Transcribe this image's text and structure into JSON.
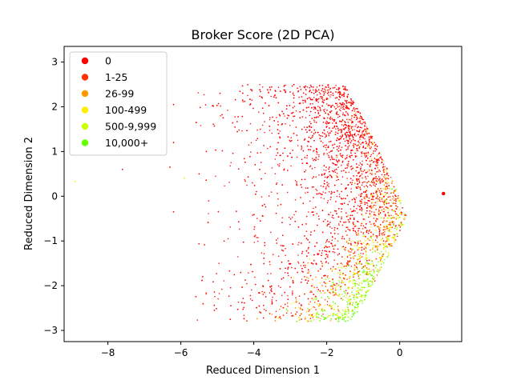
{
  "chart_data": {
    "type": "scatter",
    "title": "Broker Score (2D PCA)",
    "xlabel": "Reduced Dimension 1",
    "ylabel": "Reduced Dimension 2",
    "xlim": [
      -9.2,
      1.7
    ],
    "ylim": [
      -3.25,
      3.35
    ],
    "xticks": [
      -8,
      -6,
      -4,
      -2,
      0
    ],
    "yticks": [
      -3,
      -2,
      -1,
      0,
      1,
      2,
      3
    ],
    "grid": false,
    "legend_position": "top-left",
    "series": [
      {
        "name": "0",
        "color": "#ff0000"
      },
      {
        "name": "1-25",
        "color": "#ff3300"
      },
      {
        "name": "26-99",
        "color": "#ff9900"
      },
      {
        "name": "100-499",
        "color": "#ffee00"
      },
      {
        "name": "500-9,999",
        "color": "#ccff00"
      },
      {
        "name": "10,000+",
        "color": "#66ff00"
      }
    ],
    "points": [
      {
        "x": -8.9,
        "y": 0.33,
        "series": 3
      },
      {
        "x": -7.6,
        "y": 0.6,
        "series": 0
      },
      {
        "x": -6.3,
        "y": 0.65,
        "series": 0
      },
      {
        "x": -6.2,
        "y": -0.35,
        "series": 0
      },
      {
        "x": -6.2,
        "y": 1.2,
        "series": 0
      },
      {
        "x": -6.2,
        "y": 2.05,
        "series": 0
      },
      {
        "x": -5.9,
        "y": 0.4,
        "series": 3
      },
      {
        "x": -5.5,
        "y": 0.5,
        "series": 0
      },
      {
        "x": -5.4,
        "y": -1.8,
        "series": 0
      },
      {
        "x": -5.3,
        "y": 1.0,
        "series": 0
      },
      {
        "x": 1.2,
        "y": 0.06,
        "series": 0
      }
    ]
  }
}
